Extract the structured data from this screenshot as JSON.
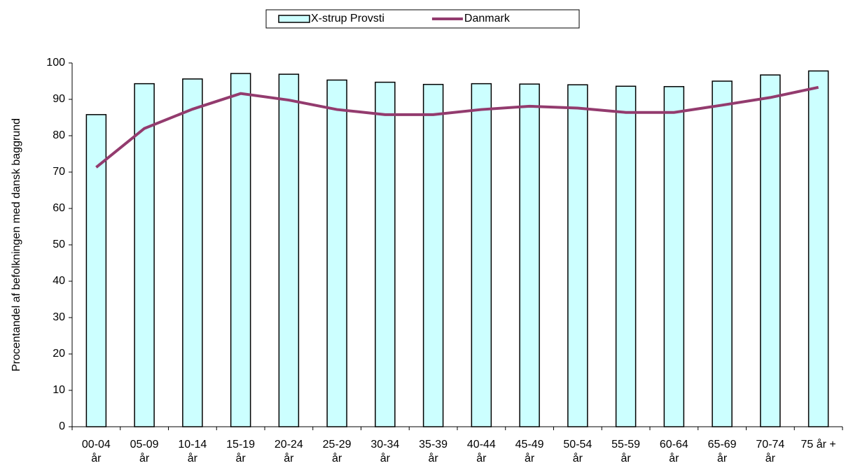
{
  "chart_data": {
    "type": "bar",
    "y_label": "Procentandel af befolkningen med dansk baggrund",
    "categories": [
      [
        "00-04",
        "år"
      ],
      [
        "05-09",
        "år"
      ],
      [
        "10-14",
        "år"
      ],
      [
        "15-19",
        "år"
      ],
      [
        "20-24",
        "år"
      ],
      [
        "25-29",
        "år"
      ],
      [
        "30-34",
        "år"
      ],
      [
        "35-39",
        "år"
      ],
      [
        "40-44",
        "år"
      ],
      [
        "45-49",
        "år"
      ],
      [
        "50-54",
        "år"
      ],
      [
        "55-59",
        "år"
      ],
      [
        "60-64",
        "år"
      ],
      [
        "65-69",
        "år"
      ],
      [
        "70-74",
        "år"
      ],
      [
        "75 år +"
      ]
    ],
    "series": [
      {
        "name": "X-strup Provsti",
        "kind": "bar",
        "color": "#ccffff",
        "values": [
          85.8,
          94.3,
          95.6,
          97.1,
          96.9,
          95.3,
          94.7,
          94.1,
          94.3,
          94.2,
          94.0,
          93.6,
          93.5,
          95.0,
          96.7,
          97.8
        ]
      },
      {
        "name": "Danmark",
        "kind": "line",
        "color": "#933b6e",
        "values": [
          71.3,
          82.0,
          87.3,
          91.6,
          89.8,
          87.2,
          85.8,
          85.8,
          87.2,
          88.1,
          87.6,
          86.4,
          86.4,
          88.4,
          90.5,
          93.3
        ]
      }
    ],
    "ylim": [
      0,
      100
    ],
    "yticks": [
      0,
      10,
      20,
      30,
      40,
      50,
      60,
      70,
      80,
      90,
      100
    ],
    "grid": false,
    "legend": "top"
  }
}
